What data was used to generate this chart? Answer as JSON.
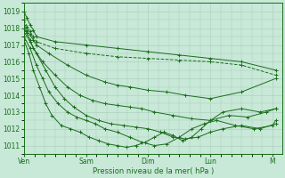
{
  "xlabel": "Pression niveau de la mer( hPa )",
  "bg_color": "#c8e8d8",
  "grid_color": "#a8cdb8",
  "line_color": "#1a6e1a",
  "ylim": [
    1010.5,
    1019.5
  ],
  "yticks": [
    1011,
    1012,
    1013,
    1014,
    1015,
    1016,
    1017,
    1018,
    1019
  ],
  "xtick_positions": [
    0,
    1,
    2,
    3,
    4
  ],
  "xtick_labels": [
    "Ven",
    "Sam",
    "Dim",
    "Lun",
    "M"
  ],
  "xlim": [
    0,
    4.15
  ],
  "series": [
    {
      "points_x": [
        0,
        0.05,
        0.1,
        0.15,
        0.2,
        0.5,
        1.0,
        1.5,
        2.0,
        2.5,
        3.0,
        3.5,
        4.05
      ],
      "points_y": [
        1019.0,
        1018.6,
        1018.2,
        1017.9,
        1017.5,
        1017.2,
        1017.0,
        1016.8,
        1016.6,
        1016.4,
        1016.2,
        1016.0,
        1015.5
      ],
      "linestyle": "-",
      "marker": "+"
    },
    {
      "points_x": [
        0,
        0.05,
        0.1,
        0.15,
        0.2,
        0.5,
        1.0,
        1.5,
        2.0,
        2.5,
        3.0,
        3.5,
        4.05
      ],
      "points_y": [
        1018.5,
        1018.1,
        1017.8,
        1017.5,
        1017.2,
        1016.8,
        1016.5,
        1016.3,
        1016.2,
        1016.1,
        1016.0,
        1015.8,
        1015.2
      ],
      "linestyle": "--",
      "marker": "+"
    },
    {
      "points_x": [
        0,
        0.05,
        0.1,
        0.15,
        0.2,
        0.4,
        0.7,
        1.0,
        1.3,
        1.5,
        1.7,
        2.0,
        2.3,
        2.6,
        3.0,
        3.5,
        4.05
      ],
      "points_y": [
        1018.2,
        1017.9,
        1017.6,
        1017.3,
        1017.0,
        1016.5,
        1015.8,
        1015.2,
        1014.8,
        1014.6,
        1014.5,
        1014.3,
        1014.2,
        1014.0,
        1013.8,
        1014.2,
        1015.0
      ],
      "linestyle": "-",
      "marker": "+"
    },
    {
      "points_x": [
        0,
        0.05,
        0.1,
        0.15,
        0.3,
        0.5,
        0.7,
        0.9,
        1.1,
        1.3,
        1.5,
        1.7,
        1.9,
        2.1,
        2.4,
        2.7,
        3.0,
        3.3,
        3.6,
        3.9,
        4.05
      ],
      "points_y": [
        1018.0,
        1017.7,
        1017.3,
        1016.8,
        1016.0,
        1015.2,
        1014.5,
        1014.0,
        1013.7,
        1013.5,
        1013.4,
        1013.3,
        1013.2,
        1013.0,
        1012.8,
        1012.6,
        1012.5,
        1012.8,
        1012.7,
        1013.0,
        1013.2
      ],
      "linestyle": "-",
      "marker": "+"
    },
    {
      "points_x": [
        0,
        0.1,
        0.2,
        0.35,
        0.5,
        0.65,
        0.8,
        1.0,
        1.2,
        1.4,
        1.6,
        1.8,
        2.0,
        2.2,
        2.4,
        2.6,
        2.8,
        3.0,
        3.2,
        3.5,
        3.8,
        4.05
      ],
      "points_y": [
        1017.8,
        1017.2,
        1016.5,
        1015.5,
        1014.5,
        1013.8,
        1013.3,
        1012.8,
        1012.5,
        1012.3,
        1012.2,
        1012.1,
        1012.0,
        1011.8,
        1011.5,
        1011.4,
        1011.5,
        1011.8,
        1012.0,
        1012.2,
        1012.0,
        1012.3
      ],
      "linestyle": "-",
      "marker": "+"
    },
    {
      "points_x": [
        0,
        0.1,
        0.2,
        0.3,
        0.4,
        0.55,
        0.7,
        0.85,
        1.0,
        1.15,
        1.3,
        1.5,
        1.7,
        1.9,
        2.1,
        2.3,
        2.5,
        2.7,
        2.9,
        3.1,
        3.4,
        3.7,
        4.0,
        4.05
      ],
      "points_y": [
        1017.5,
        1016.8,
        1015.8,
        1015.0,
        1014.2,
        1013.5,
        1013.0,
        1012.7,
        1012.5,
        1012.3,
        1012.0,
        1011.8,
        1011.5,
        1011.2,
        1011.0,
        1011.1,
        1011.5,
        1012.0,
        1012.3,
        1012.5,
        1012.2,
        1012.0,
        1012.2,
        1012.5
      ],
      "linestyle": "-",
      "marker": "+"
    },
    {
      "points_x": [
        0,
        0.08,
        0.15,
        0.25,
        0.35,
        0.45,
        0.6,
        0.75,
        0.9,
        1.05,
        1.2,
        1.35,
        1.5,
        1.65,
        1.8,
        1.95,
        2.1,
        2.25,
        2.4,
        2.55,
        2.7,
        2.85,
        3.0,
        3.2,
        3.5,
        3.8,
        4.05
      ],
      "points_y": [
        1017.3,
        1016.5,
        1015.5,
        1014.5,
        1013.5,
        1012.8,
        1012.2,
        1012.0,
        1011.8,
        1011.5,
        1011.3,
        1011.1,
        1011.0,
        1010.9,
        1011.0,
        1011.2,
        1011.5,
        1011.8,
        1011.6,
        1011.3,
        1011.5,
        1012.0,
        1012.5,
        1013.0,
        1013.2,
        1013.0,
        1013.2
      ],
      "linestyle": "-",
      "marker": "+"
    }
  ]
}
